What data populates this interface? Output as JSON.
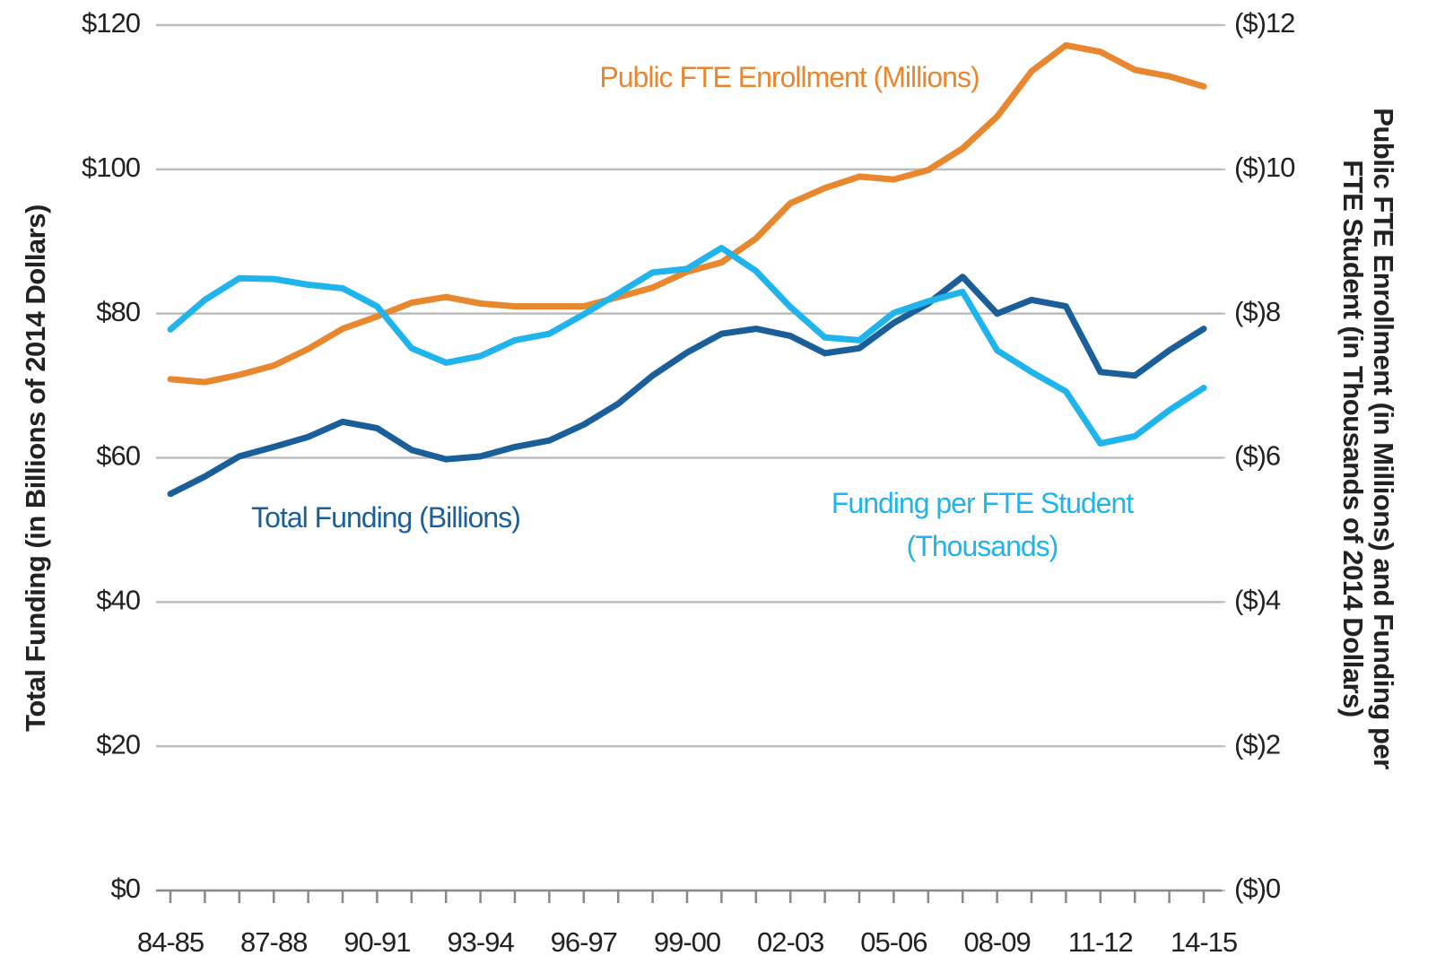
{
  "chart_data": {
    "type": "line",
    "categories": [
      "84-85",
      null,
      null,
      "87-88",
      null,
      null,
      "90-91",
      null,
      null,
      "93-94",
      null,
      null,
      "96-97",
      null,
      null,
      "99-00",
      null,
      null,
      "02-03",
      null,
      null,
      "05-06",
      null,
      null,
      "08-09",
      null,
      null,
      "11-12",
      null,
      null,
      "14-15"
    ],
    "ylabel": "Total Funding (in Billions of 2014 Dollars)",
    "y2label": "Public FTE Enrollment (in Millions) and Funding per FTE Student (in Thousands of 2014 Dollars)",
    "ylim": [
      0,
      120
    ],
    "yticks": [
      {
        "value": 0,
        "label": "$0"
      },
      {
        "value": 20,
        "label": "$20"
      },
      {
        "value": 40,
        "label": "$40"
      },
      {
        "value": 60,
        "label": "$60"
      },
      {
        "value": 80,
        "label": "$80"
      },
      {
        "value": 100,
        "label": "$100"
      },
      {
        "value": 120,
        "label": "$120"
      }
    ],
    "y2lim": [
      0,
      12
    ],
    "y2ticks": [
      {
        "value": 0,
        "label": "($)0"
      },
      {
        "value": 2,
        "label": "($)2"
      },
      {
        "value": 4,
        "label": "($)4"
      },
      {
        "value": 6,
        "label": "($)6"
      },
      {
        "value": 8,
        "label": "($)8"
      },
      {
        "value": 10,
        "label": "($)10"
      },
      {
        "value": 12,
        "label": "($)12"
      }
    ],
    "grid": true,
    "series": [
      {
        "name": "Public FTE Enrollment (Millions)",
        "color": "#e8872e",
        "axis": "y2",
        "values": [
          7.09,
          7.05,
          7.15,
          7.28,
          7.51,
          7.79,
          7.96,
          8.15,
          8.23,
          8.14,
          8.1,
          8.1,
          8.1,
          8.23,
          8.36,
          8.58,
          8.71,
          9.04,
          9.53,
          9.74,
          9.9,
          9.86,
          9.99,
          10.29,
          10.73,
          11.36,
          11.72,
          11.63,
          11.38,
          11.29,
          11.15
        ]
      },
      {
        "name": "Total Funding (Billions)",
        "color": "#1a5f99",
        "values": [
          55.0,
          57.4,
          60.2,
          61.5,
          62.9,
          65.0,
          64.1,
          61.1,
          59.8,
          60.2,
          61.5,
          62.4,
          64.6,
          67.5,
          71.4,
          74.6,
          77.2,
          77.9,
          76.9,
          74.5,
          75.2,
          78.7,
          81.4,
          85.1,
          80.0,
          81.9,
          81.0,
          71.9,
          71.4,
          74.9,
          77.9
        ]
      },
      {
        "name": "Funding per FTE Student (Thousands)",
        "color": "#1fb4ec",
        "axis": "y2",
        "values": [
          7.78,
          8.19,
          8.49,
          8.48,
          8.4,
          8.35,
          8.1,
          7.52,
          7.32,
          7.41,
          7.63,
          7.72,
          7.99,
          8.28,
          8.57,
          8.62,
          8.91,
          8.59,
          8.09,
          7.67,
          7.63,
          8.01,
          8.17,
          8.3,
          7.49,
          7.19,
          6.92,
          6.2,
          6.3,
          6.66,
          6.97
        ]
      }
    ]
  }
}
